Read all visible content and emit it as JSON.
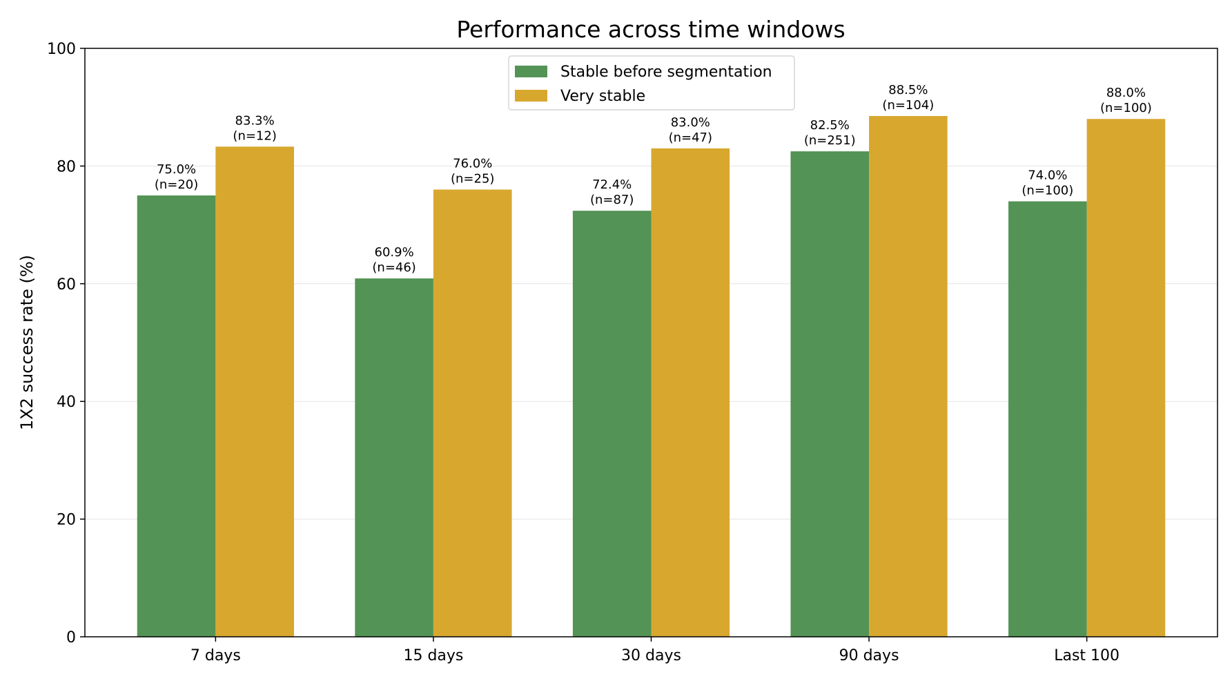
{
  "chart_data": {
    "type": "bar",
    "title": "Performance across time windows",
    "xlabel": "",
    "ylabel": "1X2 success rate (%)",
    "ylim": [
      0,
      100
    ],
    "yticks": [
      "0",
      "20",
      "40",
      "60",
      "80",
      "100"
    ],
    "grid": "horizontal",
    "legend_position": "top-center",
    "categories": [
      "7 days",
      "15 days",
      "30 days",
      "90 days",
      "Last 100"
    ],
    "series": [
      {
        "name": "Stable before segmentation",
        "color": "#539355",
        "values": [
          75.0,
          60.9,
          72.4,
          82.5,
          74.0
        ],
        "labels": [
          "75.0%",
          "60.9%",
          "72.4%",
          "82.5%",
          "74.0%"
        ],
        "counts": [
          "(n=20)",
          "(n=46)",
          "(n=87)",
          "(n=251)",
          "(n=100)"
        ]
      },
      {
        "name": "Very stable",
        "color": "#d8a72e",
        "values": [
          83.3,
          76.0,
          83.0,
          88.5,
          88.0
        ],
        "labels": [
          "83.3%",
          "76.0%",
          "83.0%",
          "88.5%",
          "88.0%"
        ],
        "counts": [
          "(n=12)",
          "(n=25)",
          "(n=47)",
          "(n=104)",
          "(n=100)"
        ]
      }
    ]
  }
}
